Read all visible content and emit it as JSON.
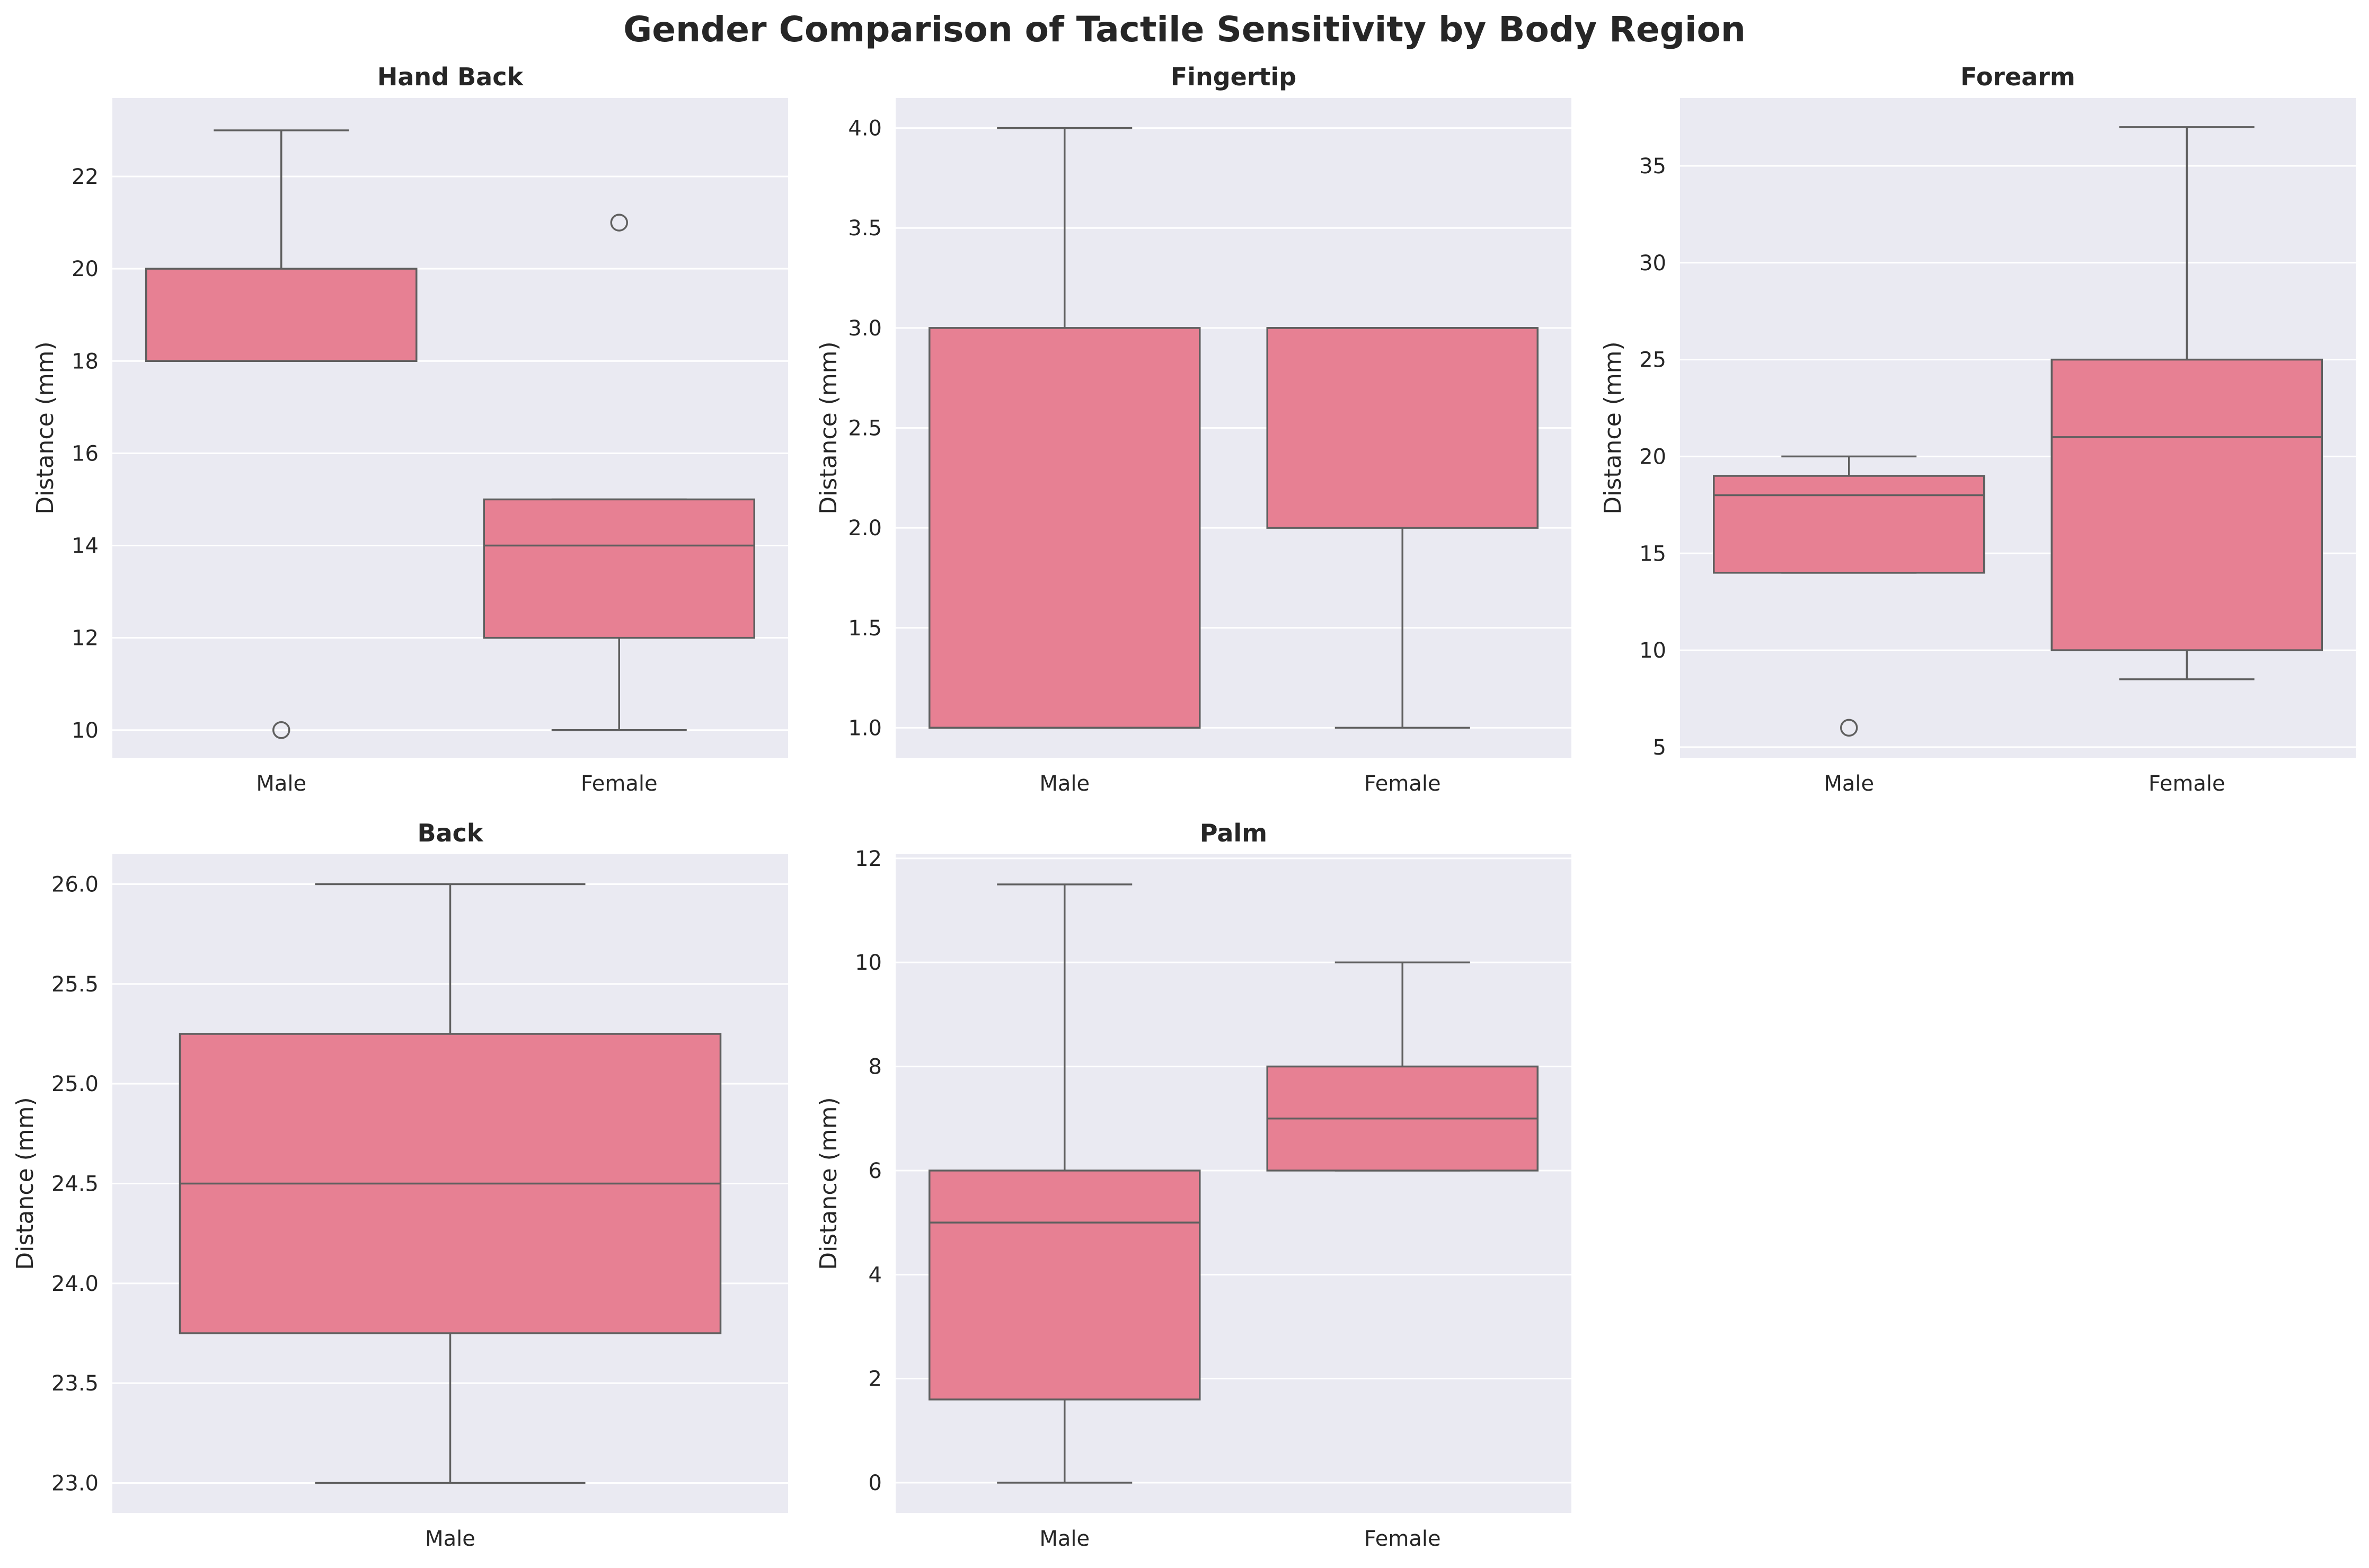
{
  "figure": {
    "title": "Gender Comparison of Tactile Sensitivity by Body Region"
  },
  "style": {
    "box_fill": "#e78093",
    "box_stroke": "#5f5f5f",
    "panel_background": "#eaeaf2",
    "grid_color": "#ffffff",
    "text_color": "#262626"
  },
  "chart_data": [
    {
      "type": "box",
      "title": "Hand Back",
      "xlabel": "",
      "ylabel": "Distance (mm)",
      "ylim": [
        9.4,
        23.7
      ],
      "yticks": [
        10,
        12,
        14,
        16,
        18,
        20,
        22
      ],
      "ytick_labels": [
        "10",
        "12",
        "14",
        "16",
        "18",
        "20",
        "22"
      ],
      "grid": true,
      "categories": [
        "Male",
        "Female"
      ],
      "boxes": [
        {
          "category": "Male",
          "whisker_low": 18,
          "q1": 18,
          "median": 18,
          "q3": 20,
          "whisker_high": 23,
          "outliers": [
            10
          ]
        },
        {
          "category": "Female",
          "whisker_low": 10,
          "q1": 12,
          "median": 14,
          "q3": 15,
          "whisker_high": 15,
          "outliers": [
            21
          ]
        }
      ]
    },
    {
      "type": "box",
      "title": "Fingertip",
      "xlabel": "",
      "ylabel": "Distance (mm)",
      "ylim": [
        0.85,
        4.15
      ],
      "yticks": [
        1.0,
        1.5,
        2.0,
        2.5,
        3.0,
        3.5,
        4.0
      ],
      "ytick_labels": [
        "1.0",
        "1.5",
        "2.0",
        "2.5",
        "3.0",
        "3.5",
        "4.0"
      ],
      "grid": true,
      "categories": [
        "Male",
        "Female"
      ],
      "boxes": [
        {
          "category": "Male",
          "whisker_low": 1,
          "q1": 1,
          "median": 1,
          "q3": 3,
          "whisker_high": 4,
          "outliers": []
        },
        {
          "category": "Female",
          "whisker_low": 1,
          "q1": 2,
          "median": 3,
          "q3": 3,
          "whisker_high": 3,
          "outliers": []
        }
      ]
    },
    {
      "type": "box",
      "title": "Forearm",
      "xlabel": "",
      "ylabel": "Distance (mm)",
      "ylim": [
        4.45,
        38.5
      ],
      "yticks": [
        5,
        10,
        15,
        20,
        25,
        30,
        35
      ],
      "ytick_labels": [
        "5",
        "10",
        "15",
        "20",
        "25",
        "30",
        "35"
      ],
      "grid": true,
      "categories": [
        "Male",
        "Female"
      ],
      "boxes": [
        {
          "category": "Male",
          "whisker_low": 14,
          "q1": 14,
          "median": 18,
          "q3": 19,
          "whisker_high": 20,
          "outliers": [
            6
          ]
        },
        {
          "category": "Female",
          "whisker_low": 8.5,
          "q1": 10,
          "median": 21,
          "q3": 25,
          "whisker_high": 37,
          "outliers": []
        }
      ]
    },
    {
      "type": "box",
      "title": "Back",
      "xlabel": "",
      "ylabel": "Distance (mm)",
      "ylim": [
        22.85,
        26.15
      ],
      "yticks": [
        23.0,
        23.5,
        24.0,
        24.5,
        25.0,
        25.5,
        26.0
      ],
      "ytick_labels": [
        "23.0",
        "23.5",
        "24.0",
        "24.5",
        "25.0",
        "25.5",
        "26.0"
      ],
      "grid": true,
      "categories": [
        "Male"
      ],
      "boxes": [
        {
          "category": "Male",
          "whisker_low": 23,
          "q1": 23.75,
          "median": 24.5,
          "q3": 25.25,
          "whisker_high": 26,
          "outliers": []
        }
      ]
    },
    {
      "type": "box",
      "title": "Palm",
      "xlabel": "",
      "ylabel": "Distance (mm)",
      "ylim": [
        -0.58,
        12.08
      ],
      "yticks": [
        0,
        2,
        4,
        6,
        8,
        10,
        12
      ],
      "ytick_labels": [
        "0",
        "2",
        "4",
        "6",
        "8",
        "10",
        "12"
      ],
      "grid": true,
      "categories": [
        "Male",
        "Female"
      ],
      "boxes": [
        {
          "category": "Male",
          "whisker_low": 0,
          "q1": 1.6,
          "median": 5,
          "q3": 6,
          "whisker_high": 11.5,
          "outliers": []
        },
        {
          "category": "Female",
          "whisker_low": 6,
          "q1": 6,
          "median": 7,
          "q3": 8,
          "whisker_high": 10,
          "outliers": []
        }
      ]
    }
  ]
}
